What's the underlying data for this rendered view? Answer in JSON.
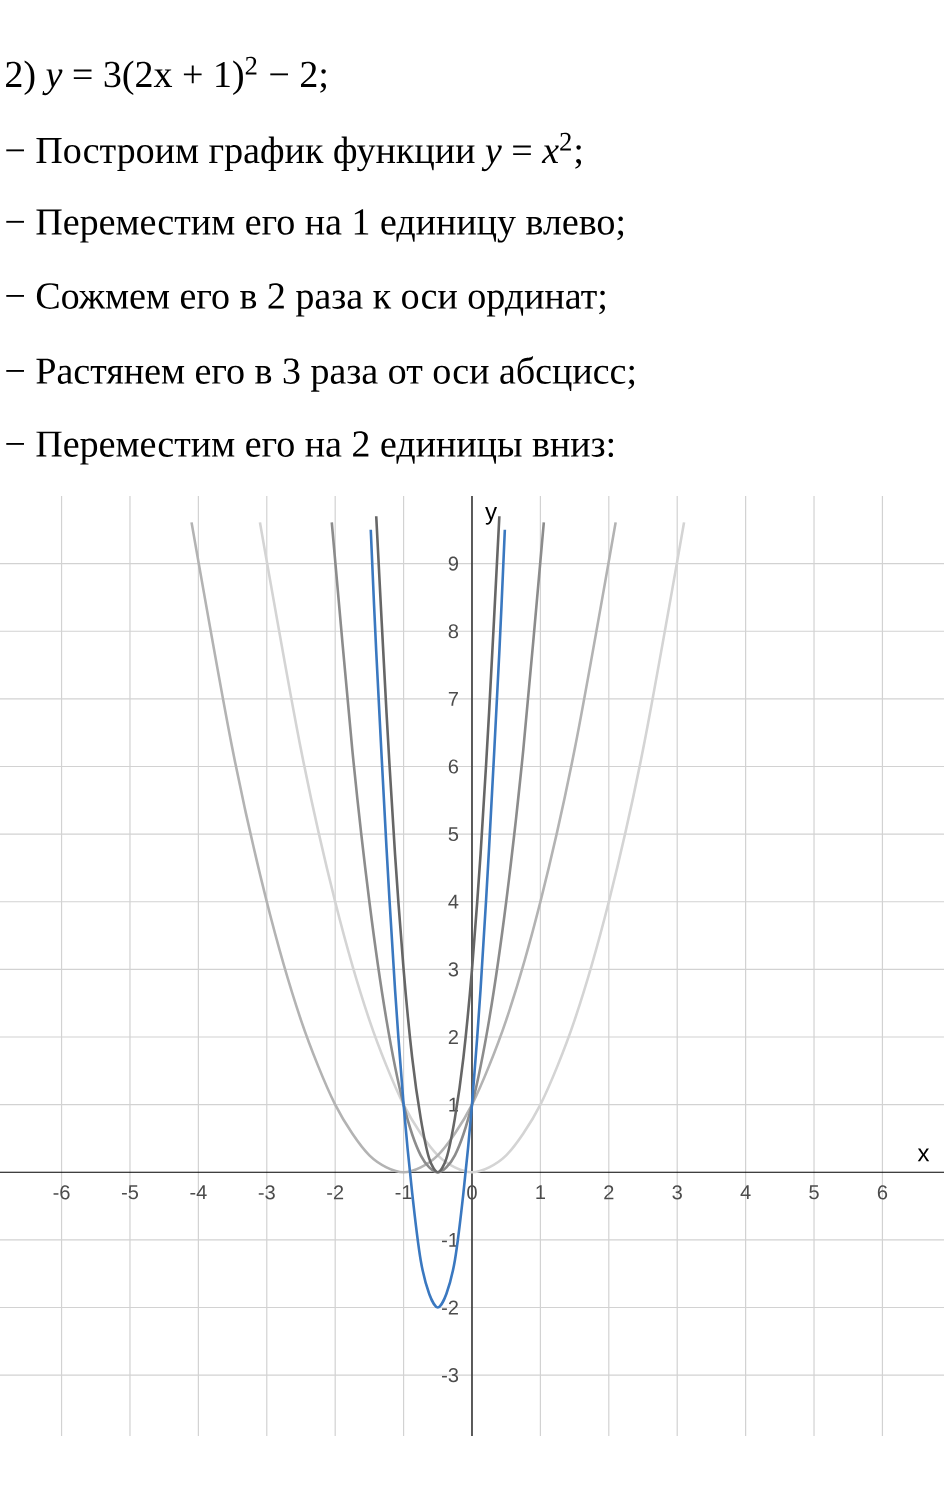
{
  "chart_data": {
    "type": "line",
    "title": "2) *y* = 3(2x + 1)$^{2}$ − 2;",
    "annotations": [
      "− Построим график функции *y* = *x*$^{2}$;",
      "− Переместим его на 1 единицу влево;",
      "− Сожмем его в 2 раза к оси ординат;",
      "− Растянем его в 3 раза от оси абсцисс;",
      "− Переместим его на 2 единицы вниз:"
    ],
    "xlabel": "x",
    "ylabel": "y",
    "xlim": [
      -6.9,
      6.9
    ],
    "ylim": [
      -3.9,
      10
    ],
    "xticks": [
      -6,
      -5,
      -4,
      -3,
      -2,
      -1,
      0,
      1,
      2,
      3,
      4,
      5,
      6
    ],
    "yticks": [
      -3,
      -2,
      -1,
      1,
      2,
      3,
      4,
      5,
      6,
      7,
      8,
      9
    ],
    "grid": true,
    "series": [
      {
        "color": "#d4d4d4",
        "x": [
          -3.1,
          -2.5,
          -2,
          -1.5,
          -1,
          -0.5,
          0,
          0.5,
          1,
          1.5,
          2,
          2.5,
          3.1
        ],
        "values": [
          9.61,
          6.25,
          4,
          2.25,
          1,
          0.25,
          0,
          0.25,
          1,
          2.25,
          4,
          6.25,
          9.61
        ]
      },
      {
        "color": "#b3b3b3",
        "x": [
          -4.1,
          -3.5,
          -3,
          -2.5,
          -2,
          -1.5,
          -1,
          -0.5,
          0,
          0.5,
          1,
          1.5,
          2.1
        ],
        "values": [
          9.61,
          6.25,
          4,
          2.25,
          1,
          0.25,
          0,
          0.25,
          1,
          2.25,
          4,
          6.25,
          9.61
        ]
      },
      {
        "color": "#8c8c8c",
        "x": [
          -2.05,
          -1.75,
          -1.5,
          -1.25,
          -1,
          -0.75,
          -0.5,
          -0.25,
          0,
          0.25,
          0.5,
          0.75,
          1.05
        ],
        "values": [
          9.61,
          6.25,
          4,
          2.25,
          1,
          0.25,
          0,
          0.25,
          1,
          2.25,
          4,
          6.25,
          9.61
        ]
      },
      {
        "color": "#666666",
        "x": [
          -1.4,
          -1.25,
          -1.125,
          -1,
          -0.875,
          -0.75,
          -0.625,
          -0.5,
          -0.375,
          -0.25,
          -0.125,
          0,
          0.125,
          0.25,
          0.4
        ],
        "values": [
          9.7,
          6.8,
          4.7,
          3,
          1.7,
          0.8,
          0.2,
          0,
          0.2,
          0.8,
          1.7,
          3,
          4.7,
          6.8,
          9.7
        ]
      },
      {
        "color": "#3a78c0",
        "x": [
          -1.48,
          -1.4,
          -1.25,
          -1.125,
          -1,
          -0.875,
          -0.75,
          -0.625,
          -0.5,
          -0.375,
          -0.25,
          -0.125,
          0,
          0.125,
          0.25,
          0.4,
          0.48
        ],
        "values": [
          9.5,
          7.7,
          4.8,
          2.7,
          1,
          -0.3,
          -1.3,
          -1.8,
          -2,
          -1.8,
          -1.3,
          -0.3,
          1,
          2.7,
          4.8,
          7.7,
          9.5
        ]
      }
    ]
  }
}
